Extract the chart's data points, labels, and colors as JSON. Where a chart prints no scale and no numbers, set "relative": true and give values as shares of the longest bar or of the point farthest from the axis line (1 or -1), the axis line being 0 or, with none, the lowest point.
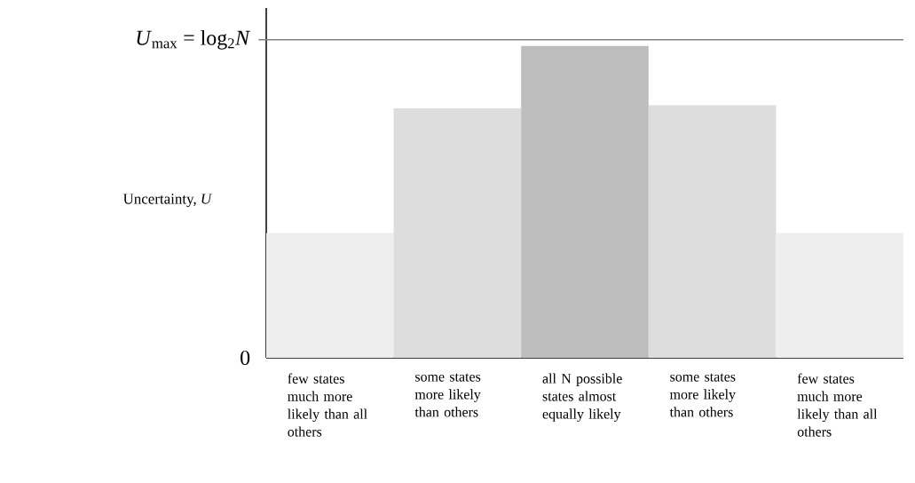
{
  "chart_data": {
    "type": "bar",
    "relative": true,
    "ylabel": "Uncertainty, *U*",
    "categories": [
      "few states much more likely than all others",
      "some states more likely than others",
      "all  N possible states almost equally likely",
      "some states more likely than others",
      "few states much more likely than all others"
    ],
    "values": [
      0.4,
      0.8,
      1,
      0.81,
      0.4
    ],
    "colors": [
      "#eeeeee",
      "#dddddd",
      "#bdbdbd",
      "#dddddd",
      "#eeeeee"
    ],
    "ref_lines": [
      {
        "axis": "y",
        "value": 1.02,
        "color": "#808080",
        "label": "*U*$_{max}$ = log$_{2}$*N*"
      }
    ],
    "annotations": [
      "0"
    ],
    "grid": false
  }
}
